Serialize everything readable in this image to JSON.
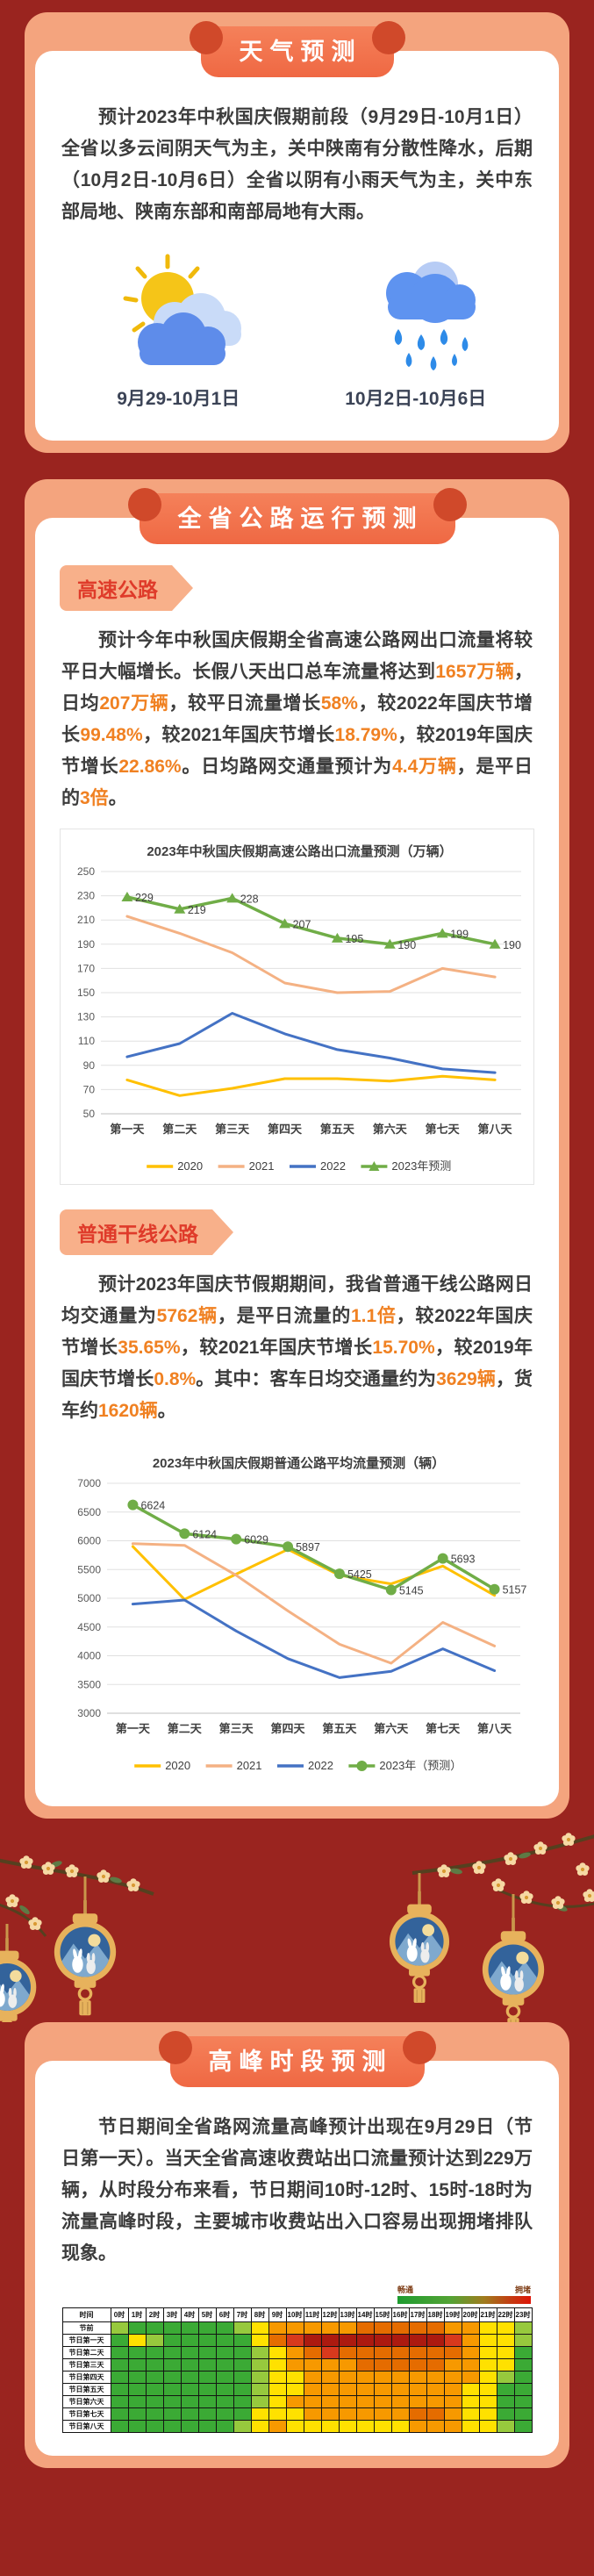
{
  "colors": {
    "page_bg": "#9A241F",
    "card_bg": "#F4A47E",
    "card_inner_bg": "#FFFFFF",
    "ribbon_bg": "#F2714B",
    "tag_bg": "#F8B08A",
    "tag_text": "#DF3B2A",
    "body_text": "#3C3C3C",
    "highlight": "#F08122"
  },
  "sections": {
    "weather": {
      "header": "天气预测",
      "paragraph": "预计2023年中秋国庆假期前段（9月29日-10月1日）全省以多云间阴天气为主，关中陕南有分散性降水，后期（10月2日-10月6日）全省以阴有小雨天气为主，关中东部局地、陕南东部和南部局地有大雨。",
      "items": [
        {
          "icon": "partly-cloudy",
          "label": "9月29-10月1日"
        },
        {
          "icon": "rain",
          "label": "10月2日-10月6日"
        }
      ]
    },
    "road": {
      "header": "全省公路运行预测",
      "expressway": {
        "tag": "高速公路",
        "segments": [
          {
            "t": "预计今年中秋国庆假期全省高速公路网出口流量将较平日大幅增长。长假八天出口总车流量将达到"
          },
          {
            "t": "1657万辆",
            "hl": true
          },
          {
            "t": "，日均"
          },
          {
            "t": "207万辆",
            "hl": true
          },
          {
            "t": "，较平日流量增长"
          },
          {
            "t": "58%",
            "hl": true
          },
          {
            "t": "，较2022年国庆节增长"
          },
          {
            "t": "99.48%",
            "hl": true
          },
          {
            "t": "，较2021年国庆节增长"
          },
          {
            "t": "18.79%",
            "hl": true
          },
          {
            "t": "，较2019年国庆节增长"
          },
          {
            "t": "22.86%",
            "hl": true
          },
          {
            "t": "。日均路网交通量预计为"
          },
          {
            "t": "4.4万辆",
            "hl": true
          },
          {
            "t": "，是平日的"
          },
          {
            "t": "3倍",
            "hl": true
          },
          {
            "t": "。"
          }
        ]
      },
      "trunk": {
        "tag": "普通干线公路",
        "segments": [
          {
            "t": "预计2023年国庆节假期期间，我省普通干线公路网日均交通量为"
          },
          {
            "t": "5762辆",
            "hl": true
          },
          {
            "t": "，是平日流量的"
          },
          {
            "t": "1.1倍",
            "hl": true
          },
          {
            "t": "，较2022年国庆节增长"
          },
          {
            "t": "35.65%",
            "hl": true
          },
          {
            "t": "，较2021年国庆节增长"
          },
          {
            "t": "15.70%",
            "hl": true
          },
          {
            "t": "，较2019年国庆节增长"
          },
          {
            "t": "0.8%",
            "hl": true
          },
          {
            "t": "。其中：客车日均交通量约为"
          },
          {
            "t": "3629辆",
            "hl": true
          },
          {
            "t": "，货车约"
          },
          {
            "t": "1620辆",
            "hl": true
          },
          {
            "t": "。"
          }
        ]
      }
    },
    "peak": {
      "header": "高峰时段预测",
      "paragraph": "节日期间全省路网流量高峰预计出现在9月29日（节日第一天）。当天全省高速收费站出口流量预计达到229万辆，从时段分布来看，节日期间10时-12时、15时-18时为流量高峰时段，主要城市收费站出入口容易出现拥堵排队现象。"
    }
  },
  "chart_data": [
    {
      "type": "line",
      "title": "2023年中秋国庆假期高速公路出口流量预测（万辆）",
      "categories": [
        "第一天",
        "第二天",
        "第三天",
        "第四天",
        "第五天",
        "第六天",
        "第七天",
        "第八天"
      ],
      "ylim": [
        50,
        250
      ],
      "ytick_step": 20,
      "grid": true,
      "legend_position": "bottom",
      "series": [
        {
          "name": "2020",
          "color": "#FFC000",
          "values": [
            78,
            65,
            71,
            79,
            79,
            77,
            81,
            78
          ]
        },
        {
          "name": "2021",
          "color": "#F4B183",
          "values": [
            213,
            199,
            183,
            158,
            150,
            151,
            170,
            163
          ]
        },
        {
          "name": "2022",
          "color": "#4472C4",
          "values": [
            97,
            108,
            133,
            116,
            103,
            96,
            87,
            84
          ]
        },
        {
          "name": "2023年预测",
          "color": "#70AD47",
          "marker": "triangle",
          "show_labels": true,
          "values": [
            229,
            219,
            228,
            207,
            195,
            190,
            199,
            190
          ]
        }
      ]
    },
    {
      "type": "line",
      "title": "2023年中秋国庆假期普通公路平均流量预测（辆）",
      "categories": [
        "第一天",
        "第二天",
        "第三天",
        "第四天",
        "第五天",
        "第六天",
        "第七天",
        "第八天"
      ],
      "ylim": [
        3000,
        7000
      ],
      "ytick_step": 500,
      "grid": true,
      "legend_position": "bottom",
      "series": [
        {
          "name": "2020",
          "color": "#FFC000",
          "values": [
            5900,
            4980,
            5420,
            5850,
            5400,
            5250,
            5560,
            5050
          ]
        },
        {
          "name": "2021",
          "color": "#F4B183",
          "values": [
            5950,
            5920,
            5400,
            4780,
            4200,
            3870,
            4580,
            4170
          ]
        },
        {
          "name": "2022",
          "color": "#4472C4",
          "values": [
            4900,
            4970,
            4430,
            3950,
            3620,
            3730,
            4120,
            3740
          ]
        },
        {
          "name": "2023年（预测）",
          "color": "#70AD47",
          "marker": "circle",
          "show_labels": true,
          "values": [
            6624,
            6124,
            6029,
            5897,
            5425,
            5145,
            5693,
            5157
          ]
        }
      ]
    },
    {
      "type": "heatmap",
      "corner": "时间",
      "columns": [
        "0时",
        "1时",
        "2时",
        "3时",
        "4时",
        "5时",
        "6时",
        "7时",
        "8时",
        "9时",
        "10时",
        "11时",
        "12时",
        "13时",
        "14时",
        "15时",
        "16时",
        "17时",
        "18时",
        "19时",
        "20时",
        "21时",
        "22时",
        "23时"
      ],
      "palette": [
        "#3BAA35",
        "#97C93D",
        "#FFE100",
        "#F79900",
        "#E56C00",
        "#D8391D",
        "#AC1A10"
      ],
      "legend": {
        "left": "畅通",
        "right": "拥堵"
      },
      "rows": [
        {
          "label": "节前",
          "values": [
            1,
            0,
            0,
            0,
            0,
            0,
            0,
            1,
            2,
            3,
            3,
            3,
            3,
            3,
            4,
            4,
            4,
            4,
            4,
            3,
            3,
            2,
            2,
            1
          ]
        },
        {
          "label": "节日第一天",
          "values": [
            0,
            2,
            1,
            0,
            0,
            0,
            0,
            0,
            2,
            4,
            5,
            6,
            6,
            6,
            6,
            6,
            6,
            6,
            6,
            5,
            3,
            2,
            2,
            1
          ]
        },
        {
          "label": "节日第二天",
          "values": [
            0,
            0,
            0,
            0,
            0,
            0,
            0,
            0,
            1,
            2,
            3,
            4,
            5,
            4,
            4,
            4,
            4,
            4,
            4,
            4,
            3,
            2,
            2,
            0
          ]
        },
        {
          "label": "节日第三天",
          "values": [
            0,
            0,
            0,
            0,
            0,
            0,
            0,
            0,
            1,
            2,
            3,
            3,
            3,
            3,
            4,
            4,
            4,
            4,
            4,
            3,
            3,
            2,
            2,
            0
          ]
        },
        {
          "label": "节日第四天",
          "values": [
            0,
            0,
            0,
            0,
            0,
            0,
            0,
            0,
            1,
            2,
            2,
            3,
            3,
            3,
            3,
            3,
            3,
            3,
            3,
            3,
            3,
            2,
            1,
            0
          ]
        },
        {
          "label": "节日第五天",
          "values": [
            0,
            0,
            0,
            0,
            0,
            0,
            0,
            0,
            1,
            2,
            2,
            3,
            3,
            3,
            3,
            3,
            3,
            3,
            3,
            3,
            2,
            2,
            0,
            0
          ]
        },
        {
          "label": "节日第六天",
          "values": [
            0,
            0,
            0,
            0,
            0,
            0,
            0,
            0,
            1,
            2,
            3,
            3,
            3,
            3,
            3,
            3,
            3,
            3,
            3,
            3,
            2,
            2,
            0,
            0
          ]
        },
        {
          "label": "节日第七天",
          "values": [
            0,
            0,
            0,
            0,
            0,
            0,
            0,
            0,
            2,
            2,
            2,
            3,
            3,
            3,
            3,
            3,
            3,
            4,
            4,
            3,
            2,
            2,
            0,
            0
          ]
        },
        {
          "label": "节日第八天",
          "values": [
            0,
            0,
            0,
            0,
            0,
            0,
            0,
            1,
            2,
            3,
            2,
            2,
            2,
            2,
            2,
            2,
            2,
            3,
            3,
            3,
            2,
            2,
            1,
            0
          ]
        }
      ]
    }
  ]
}
